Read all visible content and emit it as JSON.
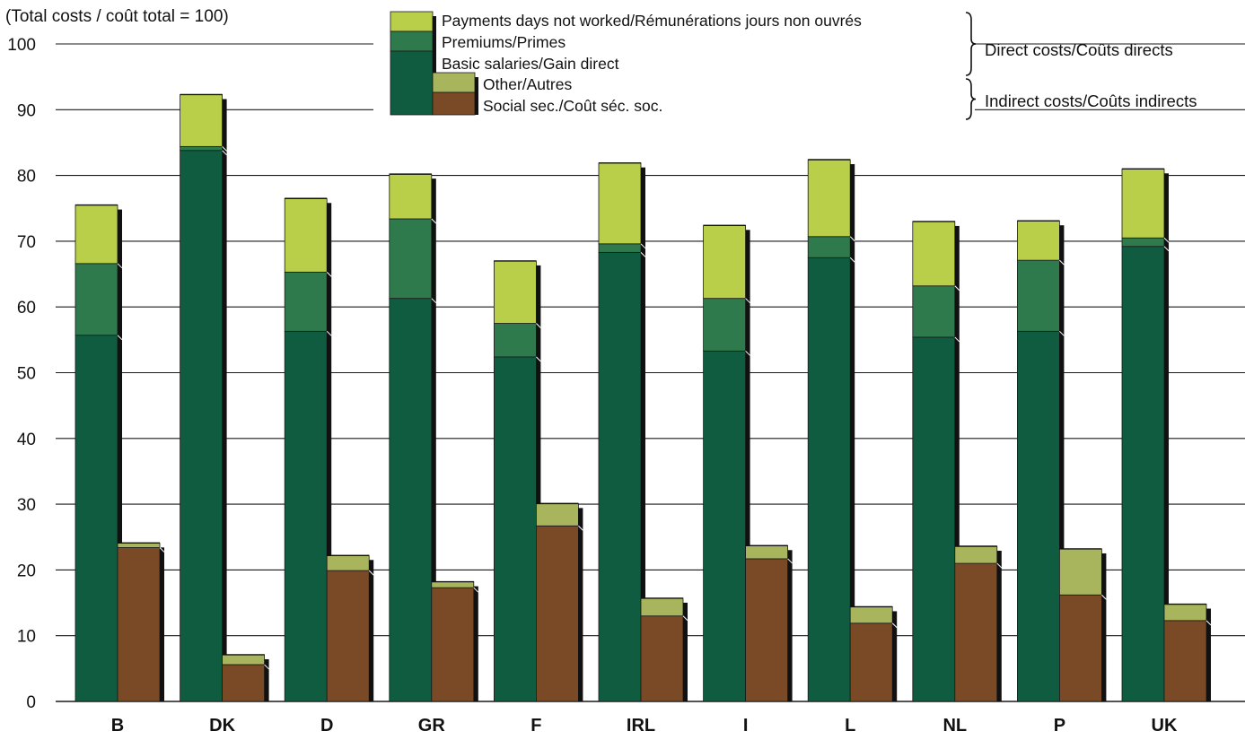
{
  "chart_data": {
    "type": "bar",
    "subtitle": "(Total costs / coût total = 100)",
    "ylim": [
      0,
      100
    ],
    "yticks": [
      "0",
      "10",
      "20",
      "30",
      "40",
      "50",
      "60",
      "70",
      "80",
      "90",
      "100"
    ],
    "grid": true,
    "legend_position": "top-right",
    "categories": [
      "B",
      "DK",
      "D",
      "GR",
      "F",
      "IRL",
      "I",
      "L",
      "NL",
      "P",
      "UK"
    ],
    "stacks": [
      {
        "name": "Direct costs/Coûts directs",
        "series": [
          {
            "name": "Basic salaries/Gain direct",
            "color": "#0f5c40",
            "values": [
              55.7,
              83.8,
              56.3,
              61.3,
              52.4,
              68.3,
              53.3,
              67.5,
              55.4,
              56.3,
              69.2
            ]
          },
          {
            "name": "Premiums/Primes",
            "color": "#2f7a4c",
            "values": [
              10.9,
              0.6,
              9.0,
              12.1,
              5.1,
              1.3,
              8.0,
              3.2,
              7.8,
              10.8,
              1.3
            ]
          },
          {
            "name": "Payments days not worked/Rémunérations jours non ouvrés",
            "color": "#b9cf4a",
            "values": [
              8.9,
              7.9,
              11.2,
              6.8,
              9.5,
              12.3,
              11.1,
              11.7,
              9.8,
              6.0,
              10.5
            ]
          }
        ]
      },
      {
        "name": "Indirect costs/Coûts indirects",
        "series": [
          {
            "name": "Social sec./Coût séc. soc.",
            "color": "#7a4a26",
            "values": [
              23.4,
              5.6,
              19.9,
              17.3,
              26.7,
              13.0,
              21.7,
              11.9,
              21.0,
              16.2,
              12.3
            ]
          },
          {
            "name": "Other/Autres",
            "color": "#a9b55c",
            "values": [
              0.7,
              1.5,
              2.3,
              0.9,
              3.4,
              2.7,
              2.0,
              2.5,
              2.6,
              7.0,
              2.5
            ]
          }
        ]
      }
    ],
    "legend": [
      {
        "label": "Payments days not worked/Rémunérations jours non ouvrés",
        "color": "#b9cf4a"
      },
      {
        "label": "Premiums/Primes",
        "color": "#2f7a4c"
      },
      {
        "label": "Basic salaries/Gain direct",
        "color": "#0f5c40"
      },
      {
        "label": "Other/Autres",
        "color": "#a9b55c"
      },
      {
        "label": "Social sec./Coût séc. soc.",
        "color": "#7a4a26"
      }
    ],
    "legend_groups": [
      "Direct costs/Coûts directs",
      "Indirect costs/Coûts indirects"
    ]
  }
}
